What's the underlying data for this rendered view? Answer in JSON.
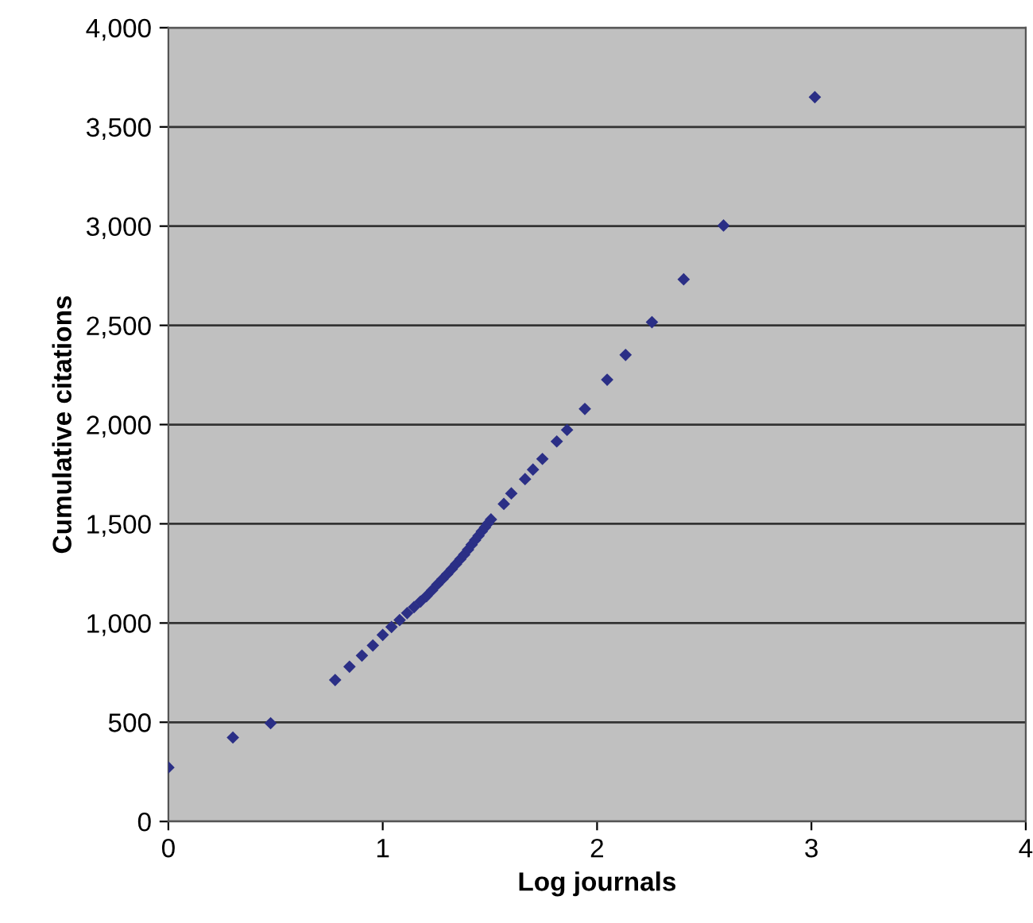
{
  "chart_data": {
    "type": "scatter",
    "xlabel": "Log journals",
    "ylabel": "Cumulative citations",
    "x": [
      0,
      0.301,
      0.477,
      0.778,
      0.845,
      0.903,
      0.954,
      1.0,
      1.041,
      1.079,
      1.114,
      1.146,
      1.176,
      1.204,
      1.23,
      1.255,
      1.279,
      1.301,
      1.322,
      1.342,
      1.362,
      1.38,
      1.398,
      1.415,
      1.431,
      1.447,
      1.462,
      1.477,
      1.491,
      1.505,
      1.565,
      1.6,
      1.664,
      1.701,
      1.745,
      1.812,
      1.86,
      1.943,
      2.047,
      2.133,
      2.256,
      2.404,
      2.59,
      3.016
    ],
    "series": [
      {
        "color": "#2b2f86",
        "values": [
          272,
          423,
          495,
          713,
          780,
          836,
          887,
          940,
          980,
          1015,
          1050,
          1080,
          1108,
          1135,
          1165,
          1195,
          1222,
          1247,
          1272,
          1297,
          1322,
          1345,
          1370,
          1395,
          1418,
          1440,
          1462,
          1482,
          1502,
          1522,
          1600,
          1653,
          1725,
          1773,
          1827,
          1915,
          1973,
          2079,
          2226,
          2351,
          2516,
          2732,
          3003,
          3650
        ]
      }
    ],
    "xlim": [
      0,
      4
    ],
    "xticks": [
      0,
      1,
      2,
      3,
      4
    ],
    "ylim": [
      0,
      4000
    ],
    "yticks": [
      {
        "value": 0,
        "label": "0"
      },
      {
        "value": 500,
        "label": "500"
      },
      {
        "value": 1000,
        "label": "1,000"
      },
      {
        "value": 1500,
        "label": "1,500"
      },
      {
        "value": 2000,
        "label": "2,000"
      },
      {
        "value": 2500,
        "label": "2,500"
      },
      {
        "value": 3000,
        "label": "3,000"
      },
      {
        "value": 3500,
        "label": "3,500"
      },
      {
        "value": 4000,
        "label": "4,000"
      }
    ],
    "grid": "y",
    "marker": "diamond",
    "legend": false
  }
}
